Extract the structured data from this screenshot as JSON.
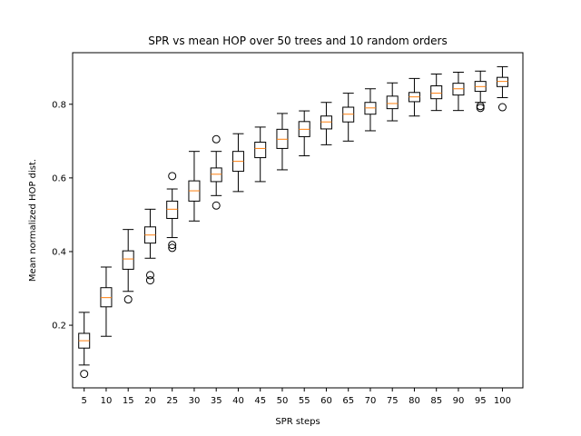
{
  "chart_data": {
    "type": "boxplot",
    "title": "SPR vs mean HOP over 50 trees and 10 random orders",
    "xlabel": "SPR steps",
    "ylabel": "Mean normalized HOP dist.",
    "ylim": [
      0.03,
      0.94
    ],
    "yticks": [
      "0.2",
      "0.4",
      "0.6",
      "0.8"
    ],
    "grid": false,
    "median_color": "#ff7f0e",
    "box_color": "#000000",
    "categories": [
      "5",
      "10",
      "15",
      "20",
      "25",
      "30",
      "35",
      "40",
      "45",
      "50",
      "55",
      "60",
      "65",
      "70",
      "75",
      "80",
      "85",
      "90",
      "95",
      "100"
    ],
    "boxes": [
      {
        "whislo": 0.092,
        "q1": 0.138,
        "med": 0.158,
        "q3": 0.178,
        "whishi": 0.235,
        "fliers": [
          0.068
        ]
      },
      {
        "whislo": 0.17,
        "q1": 0.25,
        "med": 0.275,
        "q3": 0.302,
        "whishi": 0.358,
        "fliers": []
      },
      {
        "whislo": 0.292,
        "q1": 0.352,
        "med": 0.38,
        "q3": 0.402,
        "whishi": 0.46,
        "fliers": [
          0.27
        ]
      },
      {
        "whislo": 0.382,
        "q1": 0.423,
        "med": 0.445,
        "q3": 0.467,
        "whishi": 0.515,
        "fliers": [
          0.322,
          0.336
        ]
      },
      {
        "whislo": 0.438,
        "q1": 0.49,
        "med": 0.515,
        "q3": 0.537,
        "whishi": 0.57,
        "fliers": [
          0.41,
          0.418,
          0.605
        ]
      },
      {
        "whislo": 0.483,
        "q1": 0.537,
        "med": 0.565,
        "q3": 0.592,
        "whishi": 0.672,
        "fliers": []
      },
      {
        "whislo": 0.552,
        "q1": 0.59,
        "med": 0.61,
        "q3": 0.627,
        "whishi": 0.672,
        "fliers": [
          0.525,
          0.705
        ]
      },
      {
        "whislo": 0.563,
        "q1": 0.618,
        "med": 0.645,
        "q3": 0.672,
        "whishi": 0.72,
        "fliers": []
      },
      {
        "whislo": 0.59,
        "q1": 0.655,
        "med": 0.68,
        "q3": 0.697,
        "whishi": 0.738,
        "fliers": []
      },
      {
        "whislo": 0.622,
        "q1": 0.68,
        "med": 0.705,
        "q3": 0.732,
        "whishi": 0.775,
        "fliers": []
      },
      {
        "whislo": 0.66,
        "q1": 0.712,
        "med": 0.732,
        "q3": 0.753,
        "whishi": 0.782,
        "fliers": []
      },
      {
        "whislo": 0.69,
        "q1": 0.733,
        "med": 0.752,
        "q3": 0.768,
        "whishi": 0.805,
        "fliers": []
      },
      {
        "whislo": 0.7,
        "q1": 0.752,
        "med": 0.773,
        "q3": 0.792,
        "whishi": 0.83,
        "fliers": []
      },
      {
        "whislo": 0.728,
        "q1": 0.773,
        "med": 0.79,
        "q3": 0.805,
        "whishi": 0.842,
        "fliers": []
      },
      {
        "whislo": 0.755,
        "q1": 0.788,
        "med": 0.802,
        "q3": 0.822,
        "whishi": 0.858,
        "fliers": []
      },
      {
        "whislo": 0.768,
        "q1": 0.807,
        "med": 0.82,
        "q3": 0.832,
        "whishi": 0.87,
        "fliers": []
      },
      {
        "whislo": 0.783,
        "q1": 0.815,
        "med": 0.83,
        "q3": 0.85,
        "whishi": 0.882,
        "fliers": []
      },
      {
        "whislo": 0.783,
        "q1": 0.825,
        "med": 0.842,
        "q3": 0.857,
        "whishi": 0.887,
        "fliers": []
      },
      {
        "whislo": 0.805,
        "q1": 0.835,
        "med": 0.848,
        "q3": 0.862,
        "whishi": 0.89,
        "fliers": [
          0.79,
          0.795
        ]
      },
      {
        "whislo": 0.818,
        "q1": 0.848,
        "med": 0.862,
        "q3": 0.873,
        "whishi": 0.902,
        "fliers": [
          0.792
        ]
      }
    ]
  }
}
